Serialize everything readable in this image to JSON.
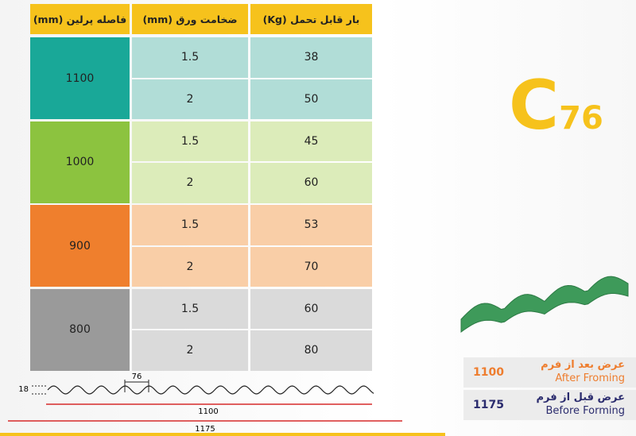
{
  "header": [
    "فاصله پرلین (mm)",
    "ضخامت ورق (mm)",
    "بار قابل تحمل (Kg)"
  ],
  "groups": [
    {
      "purlin": 1100,
      "rows": [
        [
          1.5,
          38
        ],
        [
          2,
          50
        ]
      ]
    },
    {
      "purlin": 1000,
      "rows": [
        [
          1.5,
          45
        ],
        [
          2,
          60
        ]
      ]
    },
    {
      "purlin": 900,
      "rows": [
        [
          1.5,
          53
        ],
        [
          2,
          70
        ]
      ]
    },
    {
      "purlin": 800,
      "rows": [
        [
          1.5,
          60
        ],
        [
          2,
          80
        ]
      ]
    }
  ],
  "product": {
    "letter": "C",
    "number": "76"
  },
  "profile": {
    "height": "18",
    "pitch": "76",
    "width_after": "1100",
    "width_before": "1175"
  },
  "info": [
    {
      "value": "1100",
      "fa": "عرض بعد از فرم",
      "en": "After Froming"
    },
    {
      "value": "1175",
      "fa": "عرض قبل از فرم",
      "en": "Before Forming"
    }
  ]
}
